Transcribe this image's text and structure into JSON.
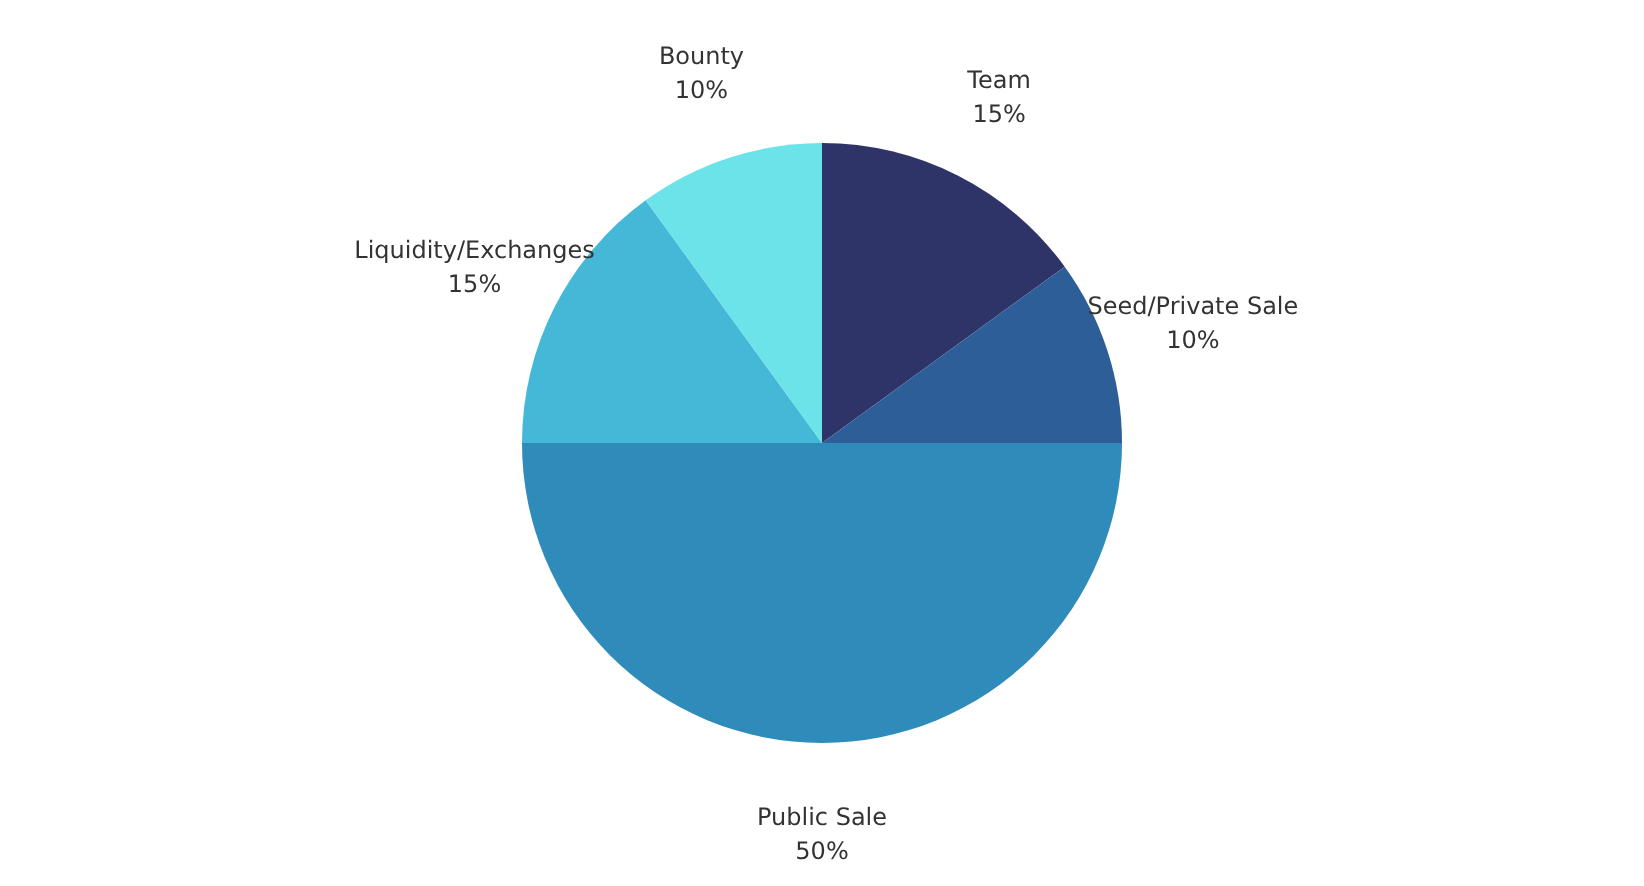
{
  "chart_data": {
    "type": "pie",
    "categories": [
      "Team",
      "Seed/Private Sale",
      "Public Sale",
      "Liquidity/Exchanges",
      "Bounty"
    ],
    "values": [
      15,
      10,
      50,
      15,
      10
    ],
    "value_labels": [
      "15%",
      "10%",
      "50%",
      "15%",
      "10%"
    ],
    "colors": [
      "#2f3468",
      "#2e5e98",
      "#2e8bba",
      "#45b8d8",
      "#6be3e8"
    ],
    "legend": false
  }
}
